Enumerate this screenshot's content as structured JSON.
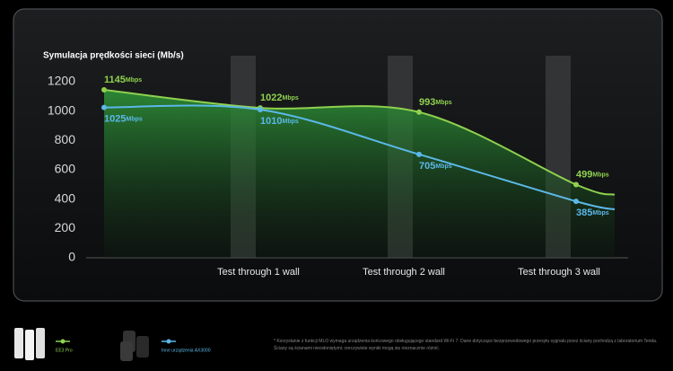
{
  "chart_data": {
    "type": "line",
    "title": "Symulacja prędkości sieci (Mb/s)",
    "categories": [
      null,
      "Test through 1 wall",
      "Test through 2 wall",
      "Test through 3 wall",
      null
    ],
    "series": [
      {
        "name": "EE3 Pro",
        "color": "#8fd14f",
        "values": [
          1145,
          1022,
          993,
          499,
          430
        ]
      },
      {
        "name": "Inne urządzenia AX3000",
        "color": "#5bb8e8",
        "values": [
          1025,
          1010,
          705,
          385,
          330
        ]
      }
    ],
    "value_unit": "Mbps",
    "ylim": [
      0,
      1200
    ],
    "yticks": [
      0,
      200,
      400,
      600,
      800,
      1000,
      1200
    ],
    "footnote": "* Korzystanie z funkcji MLO wymaga urządzenia końcowego obsługującego standard Wi-Fi 7. Dane dotyczące bezprzewodowego przesyłu sygnału przez ściany pochodzą z laboratorium Tenda. Ściany są ścianami nieosłoniętymi; rzeczywiste wyniki mogą się nieznacznie różnić."
  }
}
